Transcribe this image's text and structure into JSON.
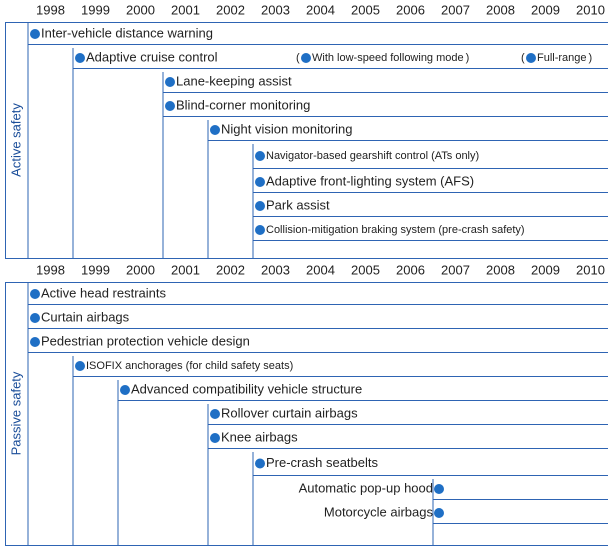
{
  "years": [
    1998,
    1999,
    2000,
    2001,
    2002,
    2003,
    2004,
    2005,
    2006,
    2007,
    2008,
    2009,
    2010
  ],
  "sections": [
    {
      "label": "Active safety",
      "items": [
        {
          "label": "Inter-vehicle distance warning",
          "start": 1998
        },
        {
          "label": "Adaptive cruise control",
          "start": 1999,
          "notes": [
            {
              "label": "With low-speed following mode",
              "start": 2004
            },
            {
              "label": "Full-range",
              "start": 2009
            }
          ]
        },
        {
          "label": "Lane-keeping assist",
          "start": 2001
        },
        {
          "label": "Blind-corner monitoring",
          "start": 2001
        },
        {
          "label": "Night vision monitoring",
          "start": 2002
        },
        {
          "label": "Navigator-based gearshift control (ATs only)",
          "start": 2003
        },
        {
          "label": "Adaptive front-lighting system (AFS)",
          "start": 2003
        },
        {
          "label": "Park assist",
          "start": 2003
        },
        {
          "label": "Collision-mitigation braking system (pre-crash safety)",
          "start": 2003
        }
      ]
    },
    {
      "label": "Passive safety",
      "items": [
        {
          "label": "Active head restraints",
          "start": 1998
        },
        {
          "label": "Curtain airbags",
          "start": 1998
        },
        {
          "label": "Pedestrian protection vehicle design",
          "start": 1998
        },
        {
          "label": "ISOFIX anchorages (for child safety seats)",
          "start": 1999
        },
        {
          "label": "Advanced compatibility vehicle structure",
          "start": 2000
        },
        {
          "label": "Rollover curtain airbags",
          "start": 2002
        },
        {
          "label": "Knee airbags",
          "start": 2002
        },
        {
          "label": "Pre-crash seatbelts",
          "start": 2003
        },
        {
          "label": "Automatic pop-up hood",
          "start": 2007,
          "label_position": "left"
        },
        {
          "label": "Motorcycle airbags",
          "start": 2007,
          "label_position": "left"
        }
      ]
    }
  ]
}
